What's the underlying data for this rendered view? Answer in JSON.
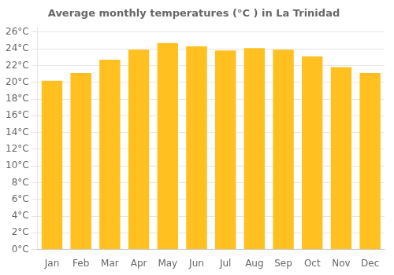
{
  "chart_data": {
    "type": "bar",
    "title": "Average monthly temperatures (°C ) in La Trinidad",
    "categories": [
      "Jan",
      "Feb",
      "Mar",
      "Apr",
      "May",
      "Jun",
      "Jul",
      "Aug",
      "Sep",
      "Oct",
      "Nov",
      "Dec"
    ],
    "values": [
      20.2,
      21.1,
      22.7,
      23.9,
      24.7,
      24.3,
      23.8,
      24.1,
      23.9,
      23.1,
      21.8,
      21.1
    ],
    "color": "#FFC020",
    "ylim": [
      0,
      26.5
    ],
    "yticks": [
      {
        "value": 0,
        "label": "0°C"
      },
      {
        "value": 2,
        "label": "2°C"
      },
      {
        "value": 4,
        "label": "4°C"
      },
      {
        "value": 6,
        "label": "6°C"
      },
      {
        "value": 8,
        "label": "8°C"
      },
      {
        "value": 10,
        "label": "10°C"
      },
      {
        "value": 12,
        "label": "12°C"
      },
      {
        "value": 14,
        "label": "14°C"
      },
      {
        "value": 16,
        "label": "16°C"
      },
      {
        "value": 18,
        "label": "18°C"
      },
      {
        "value": 20,
        "label": "20°C"
      },
      {
        "value": 22,
        "label": "22°C"
      },
      {
        "value": 24,
        "label": "24°C"
      },
      {
        "value": 26,
        "label": "26°C"
      }
    ],
    "grid": "y"
  }
}
